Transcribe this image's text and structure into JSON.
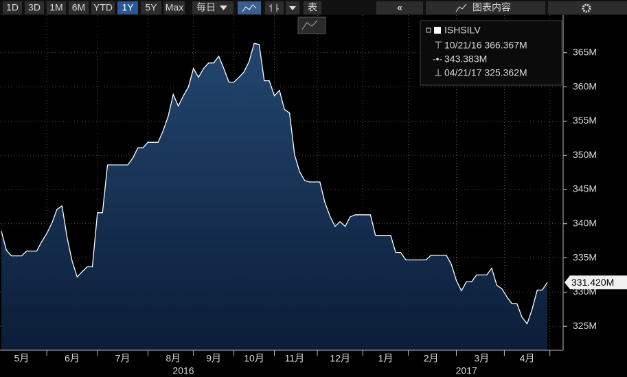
{
  "toolbar": {
    "ranges": [
      "1D",
      "3D",
      "1M",
      "6M",
      "YTD",
      "1Y",
      "5Y",
      "Max"
    ],
    "active_range": "1Y",
    "frequency": "毎日",
    "table": "表",
    "chart_content": "图表内容"
  },
  "chart_data": {
    "type": "area",
    "series": [
      {
        "name": "ISHSILV",
        "color": "#ffffff",
        "values": [
          338.9,
          336.1,
          335.3,
          335.3,
          335.3,
          336,
          336,
          336,
          337.4,
          338.6,
          340.1,
          342.1,
          342.6,
          338,
          334.5,
          332.2,
          333,
          333.7,
          333.7,
          341.6,
          341.6,
          348.6,
          348.6,
          348.6,
          348.6,
          348.6,
          349.6,
          351.1,
          351.1,
          351.9,
          351.9,
          351.9,
          353.6,
          355.7,
          358.9,
          357.2,
          358.7,
          360,
          362.7,
          361.4,
          362.7,
          363.5,
          363.5,
          364.5,
          362.7,
          360.7,
          360.7,
          361.4,
          362.2,
          363.7,
          366.367,
          366.2,
          360.9,
          360.9,
          358.7,
          359.5,
          356.7,
          356.2,
          350.1,
          347.6,
          346.3,
          346.1,
          346.1,
          346.1,
          343.1,
          341.1,
          339.6,
          340.3,
          339.6,
          341,
          341.3,
          341.3,
          341.3,
          341.3,
          338.3,
          338.3,
          338.3,
          338.3,
          335.8,
          335.8,
          334.7,
          334.7,
          334.7,
          334.7,
          334.7,
          335.4,
          335.4,
          335.4,
          335.4,
          334.1,
          331.7,
          330.2,
          331.5,
          331.5,
          332.5,
          332.5,
          332.5,
          333.5,
          331,
          330.5,
          329.3,
          328.3,
          328.3,
          326.3,
          325.362,
          327.5,
          330.3,
          330.3,
          331.42
        ]
      }
    ],
    "categories": [
      null,
      null,
      null,
      null,
      "5月",
      null,
      null,
      null,
      null,
      null,
      null,
      null,
      null,
      null,
      "6月",
      null,
      null,
      null,
      null,
      null,
      null,
      null,
      null,
      null,
      "7月",
      null,
      null,
      null,
      null,
      null,
      null,
      null,
      null,
      null,
      "8月",
      null,
      null,
      null,
      null,
      null,
      null,
      null,
      "9月",
      null,
      null,
      null,
      null,
      null,
      null,
      null,
      "10月",
      null,
      null,
      null,
      null,
      null,
      null,
      null,
      "11月",
      null,
      null,
      null,
      null,
      null,
      null,
      null,
      null,
      "12月",
      null,
      null,
      null,
      null,
      null,
      null,
      null,
      null,
      "1月",
      null,
      null,
      null,
      null,
      null,
      null,
      null,
      null,
      "2月",
      null,
      null,
      null,
      null,
      null,
      null,
      null,
      null,
      null,
      "3月",
      null,
      null,
      null,
      null,
      null,
      null,
      null,
      null,
      "4月",
      null,
      null,
      null,
      null
    ],
    "years": [
      null,
      null,
      null,
      null,
      null,
      null,
      null,
      null,
      null,
      null,
      null,
      null,
      null,
      null,
      null,
      null,
      null,
      null,
      null,
      null,
      null,
      null,
      null,
      null,
      null,
      null,
      null,
      null,
      null,
      null,
      null,
      null,
      null,
      null,
      null,
      null,
      "2016",
      null,
      null,
      null,
      null,
      null,
      null,
      null,
      null,
      null,
      null,
      null,
      null,
      null,
      null,
      null,
      null,
      null,
      null,
      null,
      null,
      null,
      null,
      null,
      null,
      null,
      null,
      null,
      null,
      null,
      null,
      null,
      null,
      null,
      null,
      null,
      null,
      null,
      null,
      null,
      null,
      null,
      null,
      null,
      null,
      null,
      null,
      null,
      null,
      null,
      null,
      null,
      null,
      null,
      null,
      null,
      "2017",
      null,
      null,
      null,
      null,
      null,
      null,
      null,
      null,
      null,
      null,
      null,
      null,
      null,
      null,
      null,
      null
    ],
    "ylim": [
      321.5,
      370.5
    ],
    "yticks": [
      {
        "value": 325,
        "label": "325M"
      },
      {
        "value": 330,
        "label": "330M"
      },
      {
        "value": 335,
        "label": "335M"
      },
      {
        "value": 340,
        "label": "340M"
      },
      {
        "value": 345,
        "label": "345M"
      },
      {
        "value": 350,
        "label": "350M"
      },
      {
        "value": 355,
        "label": "355M"
      },
      {
        "value": 360,
        "label": "360M"
      },
      {
        "value": 365,
        "label": "365M"
      }
    ],
    "grid": true,
    "legend": {
      "high": "10/21/16 366.367M",
      "average": "343.383M",
      "low": "04/21/17 325.362M"
    },
    "last_value_label": "331.420M"
  }
}
